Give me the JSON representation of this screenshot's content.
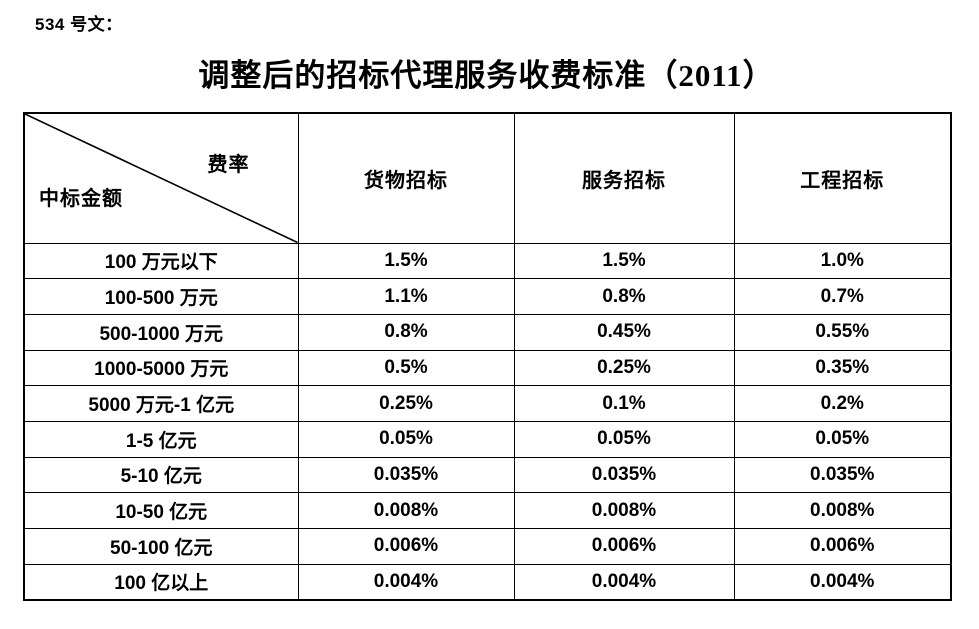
{
  "page": {
    "doc_label": "534 号文：",
    "title": "调整后的招标代理服务收费标准（2011）"
  },
  "table": {
    "corner": {
      "top_right": "费率",
      "bottom_left": "中标金额"
    },
    "columns": [
      "货物招标",
      "服务招标",
      "工程招标"
    ],
    "rows": [
      {
        "label": "100 万元以下",
        "values": [
          "1.5%",
          "1.5%",
          "1.0%"
        ]
      },
      {
        "label": "100-500 万元",
        "values": [
          "1.1%",
          "0.8%",
          "0.7%"
        ]
      },
      {
        "label": "500-1000 万元",
        "values": [
          "0.8%",
          "0.45%",
          "0.55%"
        ]
      },
      {
        "label": "1000-5000 万元",
        "values": [
          "0.5%",
          "0.25%",
          "0.35%"
        ]
      },
      {
        "label": "5000 万元-1 亿元",
        "values": [
          "0.25%",
          "0.1%",
          "0.2%"
        ]
      },
      {
        "label": "1-5 亿元",
        "values": [
          "0.05%",
          "0.05%",
          "0.05%"
        ]
      },
      {
        "label": "5-10 亿元",
        "values": [
          "0.035%",
          "0.035%",
          "0.035%"
        ]
      },
      {
        "label": "10-50 亿元",
        "values": [
          "0.008%",
          "0.008%",
          "0.008%"
        ]
      },
      {
        "label": "50-100 亿元",
        "values": [
          "0.006%",
          "0.006%",
          "0.006%"
        ]
      },
      {
        "label": "100 亿以上",
        "values": [
          "0.004%",
          "0.004%",
          "0.004%"
        ]
      }
    ],
    "ink_color": "#000000",
    "background_color": "#ffffff"
  }
}
